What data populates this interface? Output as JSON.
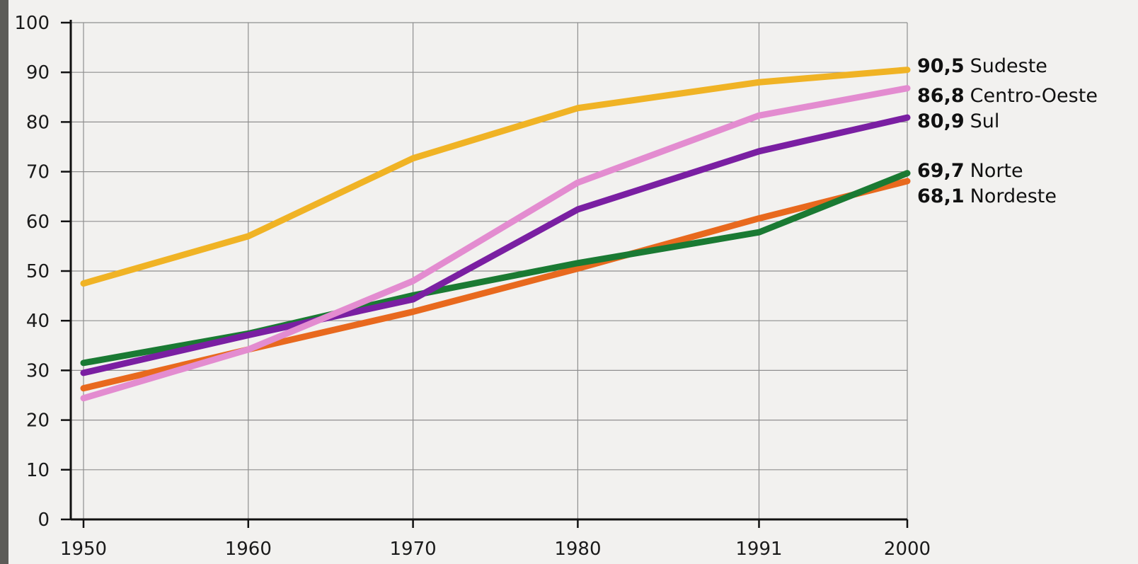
{
  "chart_data": {
    "type": "line",
    "title": "",
    "xlabel": "",
    "ylabel": "",
    "categories": [
      "1950",
      "1960",
      "1970",
      "1980",
      "1991",
      "2000"
    ],
    "x": [
      1950,
      1960,
      1970,
      1980,
      1991,
      2000
    ],
    "ylim": [
      0,
      100
    ],
    "yticks": [
      "0",
      "10",
      "20",
      "30",
      "40",
      "50",
      "60",
      "70",
      "80",
      "90",
      "100"
    ],
    "grid": true,
    "legend": "end-of-line labels on right",
    "series": [
      {
        "name": "Sudeste",
        "end_label": "90,5",
        "color": "#f0b325",
        "values": [
          47.5,
          57.0,
          72.7,
          82.8,
          88.0,
          90.5
        ]
      },
      {
        "name": "Centro-Oeste",
        "end_label": "86,8",
        "color": "#e38cd0",
        "values": [
          24.4,
          34.2,
          48.0,
          67.8,
          81.3,
          86.8
        ]
      },
      {
        "name": "Sul",
        "end_label": "80,9",
        "color": "#7a1fa2",
        "values": [
          29.5,
          37.1,
          44.3,
          62.4,
          74.1,
          80.9
        ]
      },
      {
        "name": "Norte",
        "end_label": "69,7",
        "color": "#1a7a33",
        "values": [
          31.5,
          37.4,
          45.1,
          51.6,
          57.8,
          69.7
        ]
      },
      {
        "name": "Nordeste",
        "end_label": "68,1",
        "color": "#e8691e",
        "values": [
          26.4,
          34.2,
          41.8,
          50.5,
          60.6,
          68.1
        ]
      }
    ]
  }
}
